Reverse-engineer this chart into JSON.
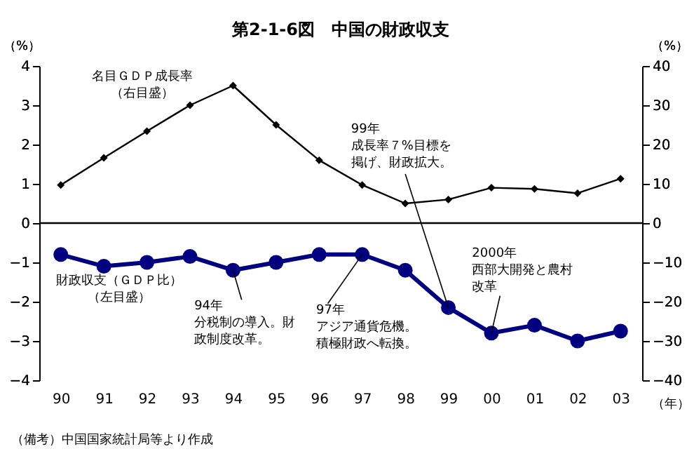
{
  "chart_data": {
    "type": "line",
    "title": "第2-1-6図　中国の財政収支",
    "categories": [
      "90",
      "91",
      "92",
      "93",
      "94",
      "95",
      "96",
      "97",
      "98",
      "99",
      "00",
      "01",
      "02",
      "03"
    ],
    "xlabel": "（年）",
    "ylabel": "（%）",
    "y2label": "（%）",
    "ylim": [
      -4,
      4
    ],
    "yticks": [
      -4,
      -3,
      -2,
      -1,
      0,
      1,
      2,
      3,
      4
    ],
    "y2lim": [
      -40,
      40
    ],
    "y2ticks": [
      -40,
      -30,
      -20,
      -10,
      0,
      10,
      20,
      30,
      40
    ],
    "series": [
      {
        "name": "財政収支（ＧＤＰ比）（左目盛）",
        "color": "#000080",
        "marker": "circle",
        "values": [
          -0.8,
          -1.1,
          -1.0,
          -0.85,
          -1.2,
          -1.0,
          -0.8,
          -0.8,
          -1.2,
          -2.15,
          -2.8,
          -2.6,
          -3.0,
          -2.75
        ]
      },
      {
        "name": "名目ＧＤＰ成長率（右目盛）",
        "color": "#000000",
        "marker": "diamond",
        "axis": "y2",
        "values": [
          9.7,
          16.6,
          23.4,
          30,
          35,
          25,
          16,
          9.7,
          5,
          6,
          9,
          8.7,
          7.6,
          11.3
        ]
      }
    ],
    "ref_lines": [
      {
        "axis": "y",
        "value": 0
      }
    ],
    "grid": false,
    "line_style": "solid",
    "annotations": [
      {
        "text": "94年分税制の導入。財政制度改革。",
        "x": "94",
        "y": -1.2
      },
      {
        "text": "97年アジア通貨危機。積極財政へ転換。",
        "x": "97",
        "y": -0.8
      },
      {
        "text": "99年成長率７%目標を掲げ、財政拡大。",
        "x": "99",
        "y": -2.15
      },
      {
        "text": "2000年西部大開発と農村改革",
        "x": "00",
        "y": -2.8
      },
      "（備考）中国国家統計局等より作成"
    ]
  }
}
